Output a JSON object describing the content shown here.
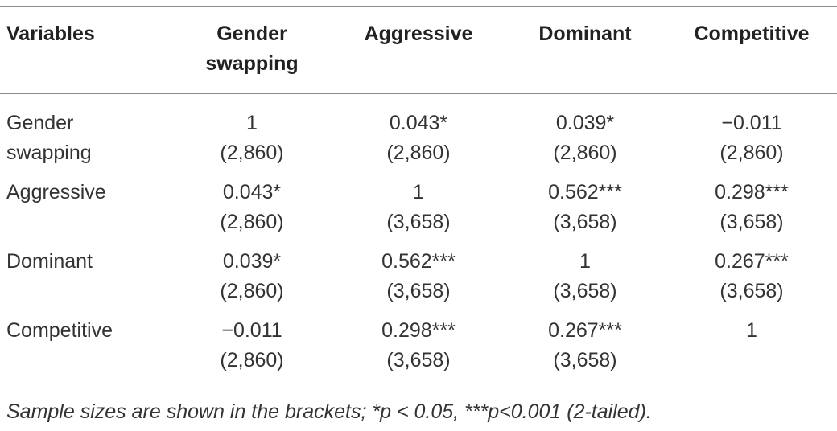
{
  "table": {
    "headers": [
      "Variables",
      "Gender swapping",
      "Aggressive",
      "Dominant",
      "Competitive"
    ],
    "header_lines": {
      "col0": [
        "Variables"
      ],
      "col1": [
        "Gender",
        "swapping"
      ],
      "col2": [
        "Aggressive"
      ],
      "col3": [
        "Dominant"
      ],
      "col4": [
        "Competitive"
      ]
    },
    "rows": [
      {
        "label_lines": [
          "Gender",
          "swapping"
        ],
        "cells": [
          {
            "value": "1",
            "n": "(2,860)"
          },
          {
            "value": "0.043*",
            "n": "(2,860)"
          },
          {
            "value": "0.039*",
            "n": "(2,860)"
          },
          {
            "value": "−0.011",
            "n": "(2,860)"
          }
        ]
      },
      {
        "label_lines": [
          "Aggressive"
        ],
        "cells": [
          {
            "value": "0.043*",
            "n": "(2,860)"
          },
          {
            "value": "1",
            "n": "(3,658)"
          },
          {
            "value": "0.562***",
            "n": "(3,658)"
          },
          {
            "value": "0.298***",
            "n": "(3,658)"
          }
        ]
      },
      {
        "label_lines": [
          "Dominant"
        ],
        "cells": [
          {
            "value": "0.039*",
            "n": "(2,860)"
          },
          {
            "value": "0.562***",
            "n": "(3,658)"
          },
          {
            "value": "1",
            "n": "(3,658)"
          },
          {
            "value": "0.267***",
            "n": "(3,658)"
          }
        ]
      },
      {
        "label_lines": [
          "Competitive"
        ],
        "cells": [
          {
            "value": "−0.011",
            "n": "(2,860)"
          },
          {
            "value": "0.298***",
            "n": "(3,658)"
          },
          {
            "value": "0.267***",
            "n": "(3,658)"
          },
          {
            "value": "1",
            "n": ""
          }
        ]
      }
    ],
    "footnote": "Sample sizes are shown in the brackets; *p < 0.05, ***p<0.001 (2-tailed)."
  }
}
